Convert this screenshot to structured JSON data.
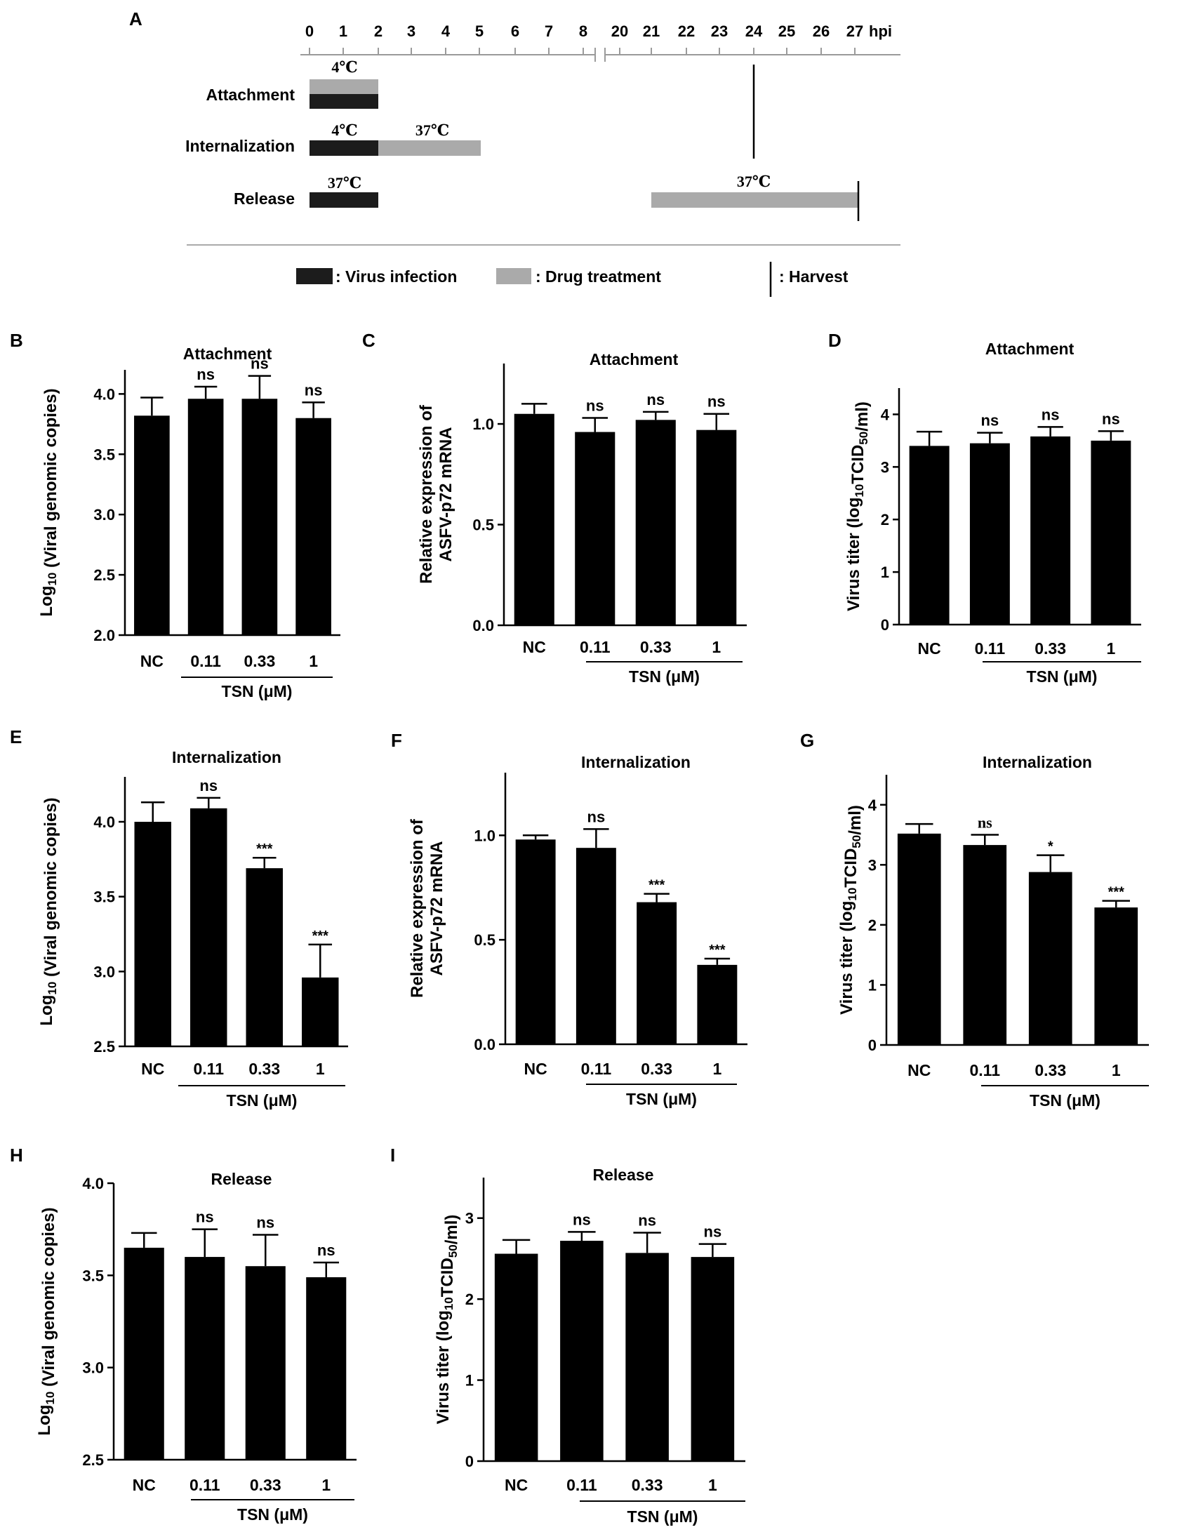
{
  "panelA": {
    "letter": "A",
    "ticks_left": [
      "0",
      "1",
      "2",
      "3",
      "4",
      "5",
      "6",
      "7",
      "8"
    ],
    "ticks_right": [
      "20",
      "21",
      "22",
      "23",
      "24",
      "25",
      "26",
      "27"
    ],
    "unit": "hpi",
    "rows": [
      {
        "label": "Attachment",
        "temp_top": "4℃"
      },
      {
        "label": "Internalization",
        "temp_left": "4℃",
        "temp_right": "37℃"
      },
      {
        "label": "Release",
        "temp_left": "37℃",
        "temp_right": "37℃"
      }
    ],
    "legend": {
      "virus": ": Virus infection",
      "drug": ": Drug treatment",
      "harvest": ": Harvest"
    },
    "colors": {
      "virus": "#1c1c1c",
      "drug": "#aaaaaa",
      "axis": "#9a9a9a"
    }
  },
  "chart_data": [
    {
      "id": "B",
      "type": "bar",
      "title": "Attachment",
      "ylabel": "Log10 (Viral genomic copies)",
      "ylim": [
        2.0,
        4.2
      ],
      "yticks": [
        "2.0",
        "2.5",
        "3.0",
        "3.5",
        "4.0"
      ],
      "categories": [
        "NC",
        "0.11",
        "0.33",
        "1"
      ],
      "values": [
        3.82,
        3.96,
        3.96,
        3.8
      ],
      "errors": [
        0.15,
        0.1,
        0.19,
        0.13
      ],
      "sig": [
        "",
        "ns",
        "ns",
        "ns"
      ],
      "group_label": "TSN (μM)"
    },
    {
      "id": "C",
      "type": "bar",
      "title": "Attachment",
      "ylabel": "Relative expression of ASFV-p72 mRNA",
      "ylim": [
        0.0,
        1.3
      ],
      "yticks": [
        "0.0",
        "0.5",
        "1.0"
      ],
      "categories": [
        "NC",
        "0.11",
        "0.33",
        "1"
      ],
      "values": [
        1.05,
        0.96,
        1.02,
        0.97
      ],
      "errors": [
        0.05,
        0.07,
        0.04,
        0.08
      ],
      "sig": [
        "",
        "ns",
        "ns",
        "ns"
      ],
      "group_label": "TSN (μM)"
    },
    {
      "id": "D",
      "type": "bar",
      "title": "Attachment",
      "ylabel": "Virus titer (log10TCID50/ml)",
      "ylim": [
        0,
        4.5
      ],
      "yticks": [
        "0",
        "1",
        "2",
        "3",
        "4"
      ],
      "categories": [
        "NC",
        "0.11",
        "0.33",
        "1"
      ],
      "values": [
        3.4,
        3.45,
        3.58,
        3.5
      ],
      "errors": [
        0.27,
        0.2,
        0.18,
        0.18
      ],
      "sig": [
        "",
        "ns",
        "ns",
        "ns"
      ],
      "group_label": "TSN (μM)"
    },
    {
      "id": "E",
      "type": "bar",
      "title": "Internalization",
      "ylabel": "Log10 (Viral genomic copies)",
      "ylim": [
        2.5,
        4.3
      ],
      "yticks": [
        "2.5",
        "3.0",
        "3.5",
        "4.0"
      ],
      "categories": [
        "NC",
        "0.11",
        "0.33",
        "1"
      ],
      "values": [
        4.0,
        4.09,
        3.69,
        2.96
      ],
      "errors": [
        0.13,
        0.07,
        0.07,
        0.22
      ],
      "sig": [
        "",
        "ns",
        "***",
        "***"
      ],
      "group_label": "TSN (μM)"
    },
    {
      "id": "F",
      "type": "bar",
      "title": "Internalization",
      "ylabel": "Relative expression of ASFV-p72 mRNA",
      "ylim": [
        0.0,
        1.3
      ],
      "yticks": [
        "0.0",
        "0.5",
        "1.0"
      ],
      "categories": [
        "NC",
        "0.11",
        "0.33",
        "1"
      ],
      "values": [
        0.98,
        0.94,
        0.68,
        0.38
      ],
      "errors": [
        0.02,
        0.09,
        0.04,
        0.03
      ],
      "sig": [
        "",
        "ns",
        "***",
        "***"
      ],
      "group_label": "TSN (μM)"
    },
    {
      "id": "G",
      "type": "bar",
      "title": "Internalization",
      "ylabel": "Virus titer (log10TCID50/ml)",
      "ylim": [
        0,
        4.5
      ],
      "yticks": [
        "0",
        "1",
        "2",
        "3",
        "4"
      ],
      "categories": [
        "NC",
        "0.11",
        "0.33",
        "1"
      ],
      "values": [
        3.52,
        3.33,
        2.88,
        2.29
      ],
      "errors": [
        0.16,
        0.17,
        0.28,
        0.11
      ],
      "sig": [
        "",
        "ns",
        "*",
        "***"
      ],
      "group_label": "TSN (μM)"
    },
    {
      "id": "H",
      "type": "bar",
      "title": "Release",
      "ylabel": "Log10 (Viral genomic copies)",
      "ylim": [
        2.5,
        4.0
      ],
      "yticks": [
        "2.5",
        "3.0",
        "3.5",
        "4.0"
      ],
      "categories": [
        "NC",
        "0.11",
        "0.33",
        "1"
      ],
      "values": [
        3.65,
        3.6,
        3.55,
        3.49
      ],
      "errors": [
        0.08,
        0.15,
        0.17,
        0.08
      ],
      "sig": [
        "",
        "ns",
        "ns",
        "ns"
      ],
      "group_label": "TSN (μM)"
    },
    {
      "id": "I",
      "type": "bar",
      "title": "Release",
      "ylabel": "Virus titer (log10TCID50/ml)",
      "ylim": [
        0,
        3.5
      ],
      "yticks": [
        "0",
        "1",
        "2",
        "3"
      ],
      "categories": [
        "NC",
        "0.11",
        "0.33",
        "1"
      ],
      "values": [
        2.56,
        2.72,
        2.57,
        2.52
      ],
      "errors": [
        0.17,
        0.11,
        0.25,
        0.16
      ],
      "sig": [
        "",
        "ns",
        "ns",
        "ns"
      ],
      "group_label": "TSN (μM)"
    }
  ]
}
